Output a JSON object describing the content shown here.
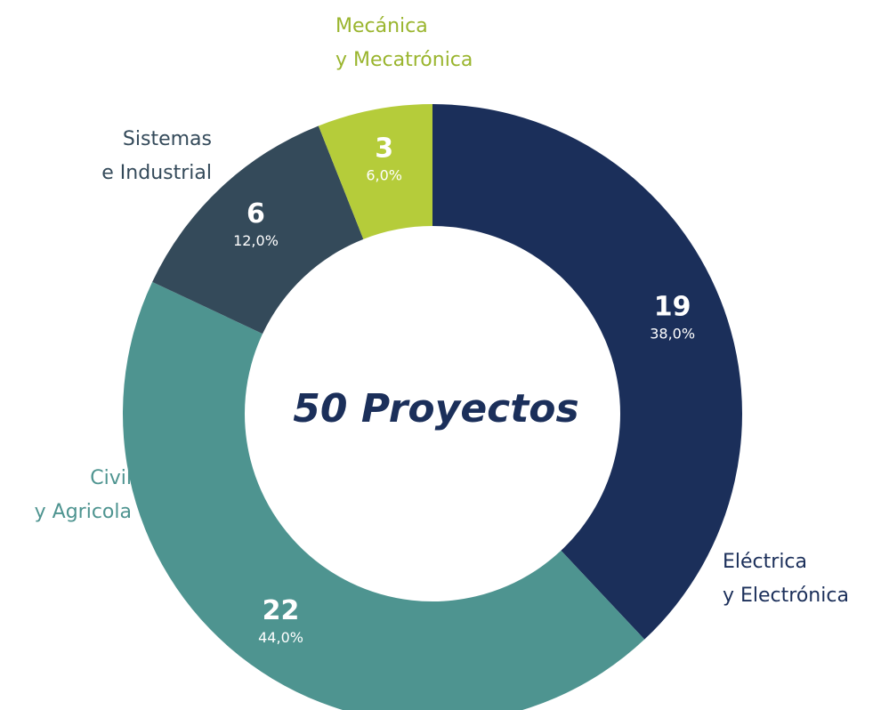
{
  "chart_data": {
    "type": "donut",
    "center_label": "50 Proyectos",
    "categories": [
      [
        "Eléctrica",
        "y Electrónica"
      ],
      [
        "Civil",
        "y Agricola"
      ],
      [
        "Sistemas",
        "e Industrial"
      ],
      [
        "Mecánica",
        "y Mecatrónica"
      ]
    ],
    "values": [
      19,
      22,
      6,
      3
    ],
    "percentages": [
      38.0,
      44.0,
      12.0,
      6.0
    ],
    "percentage_labels": [
      "38,0%",
      "44,0%",
      "12,0%",
      "6,0%"
    ],
    "colors": [
      "#1b2f5a",
      "#4e9490",
      "#344a5a",
      "#b5cc3a"
    ]
  }
}
